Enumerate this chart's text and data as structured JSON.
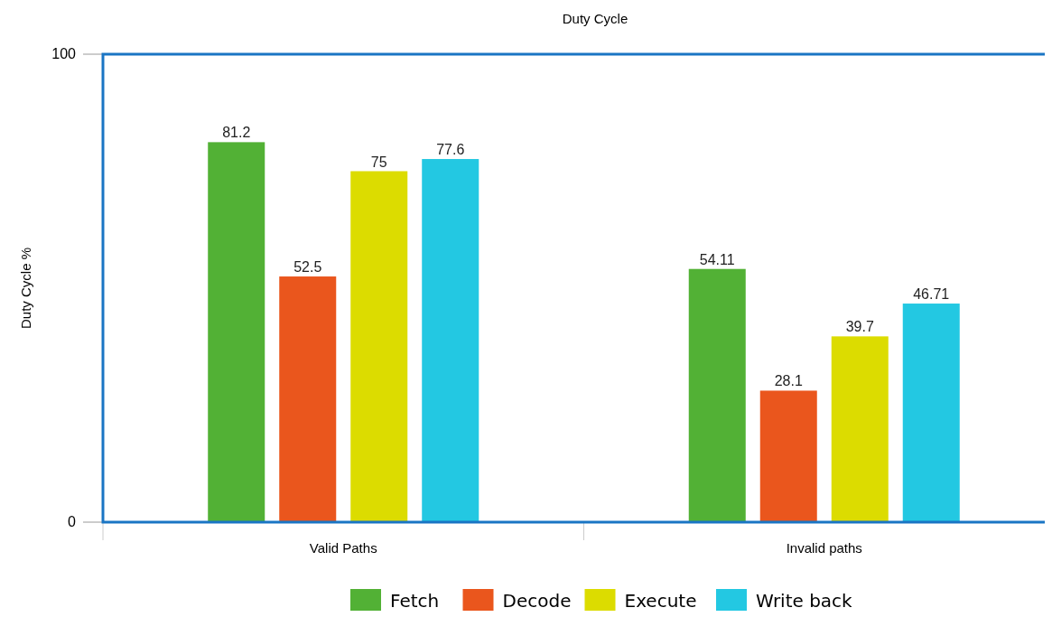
{
  "chart_data": {
    "type": "bar",
    "title": "Duty Cycle",
    "ylabel": "Duty Cycle %",
    "categories": [
      "Valid Paths",
      "Invalid paths"
    ],
    "series": [
      {
        "name": "Fetch",
        "color": "#52b135",
        "values": [
          81.2,
          54.11
        ]
      },
      {
        "name": "Decode",
        "color": "#ea561d",
        "values": [
          52.5,
          28.1
        ]
      },
      {
        "name": "Execute",
        "color": "#dcdc00",
        "values": [
          75,
          39.7
        ]
      },
      {
        "name": "Write back",
        "color": "#23c8e2",
        "values": [
          77.6,
          46.71
        ]
      }
    ],
    "ylim": [
      0,
      100
    ],
    "yticks": [
      0,
      100
    ],
    "legend": "bottom",
    "data_labels": true
  }
}
